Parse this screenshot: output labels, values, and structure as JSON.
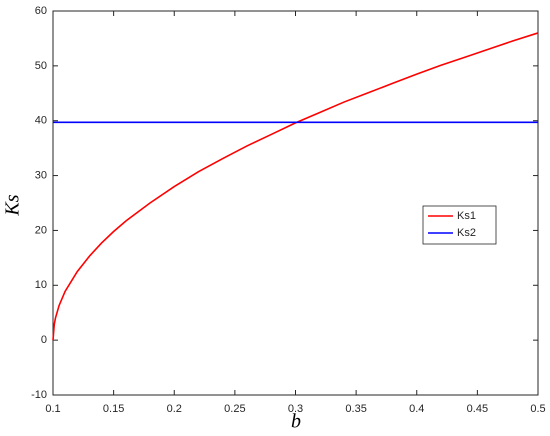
{
  "chart_data": {
    "type": "line",
    "xlabel": "b",
    "ylabel": "Ks",
    "x": [
      0.1,
      0.101,
      0.102,
      0.105,
      0.11,
      0.12,
      0.13,
      0.14,
      0.15,
      0.16,
      0.18,
      0.2,
      0.22,
      0.24,
      0.26,
      0.28,
      0.3,
      0.32,
      0.34,
      0.36,
      0.38,
      0.4,
      0.42,
      0.44,
      0.46,
      0.48,
      0.5
    ],
    "series": [
      {
        "name": "Ks1",
        "color": "#ff0000",
        "values": [
          0,
          2.8,
          4.0,
          6.3,
          8.9,
          12.5,
          15.3,
          17.7,
          19.8,
          21.7,
          25.0,
          28.0,
          30.7,
          33.1,
          35.4,
          37.5,
          39.6,
          41.5,
          43.4,
          45.1,
          46.8,
          48.5,
          50.1,
          51.6,
          53.1,
          54.6,
          56.0
        ]
      },
      {
        "name": "Ks2",
        "color": "#0000ff",
        "values": [
          39.7,
          39.7,
          39.7,
          39.7,
          39.7,
          39.7,
          39.7,
          39.7,
          39.7,
          39.7,
          39.7,
          39.7,
          39.7,
          39.7,
          39.7,
          39.7,
          39.7,
          39.7,
          39.7,
          39.7,
          39.7,
          39.7,
          39.7,
          39.7,
          39.7,
          39.7,
          39.7
        ]
      }
    ],
    "xlim": [
      0.1,
      0.5
    ],
    "xticks": [
      0.1,
      0.15,
      0.2,
      0.25,
      0.3,
      0.35,
      0.4,
      0.45,
      0.5
    ],
    "ylim": [
      -10,
      60
    ],
    "yticks": [
      -10,
      0,
      10,
      20,
      30,
      40,
      50,
      60
    ],
    "grid": false,
    "legend": "right"
  }
}
